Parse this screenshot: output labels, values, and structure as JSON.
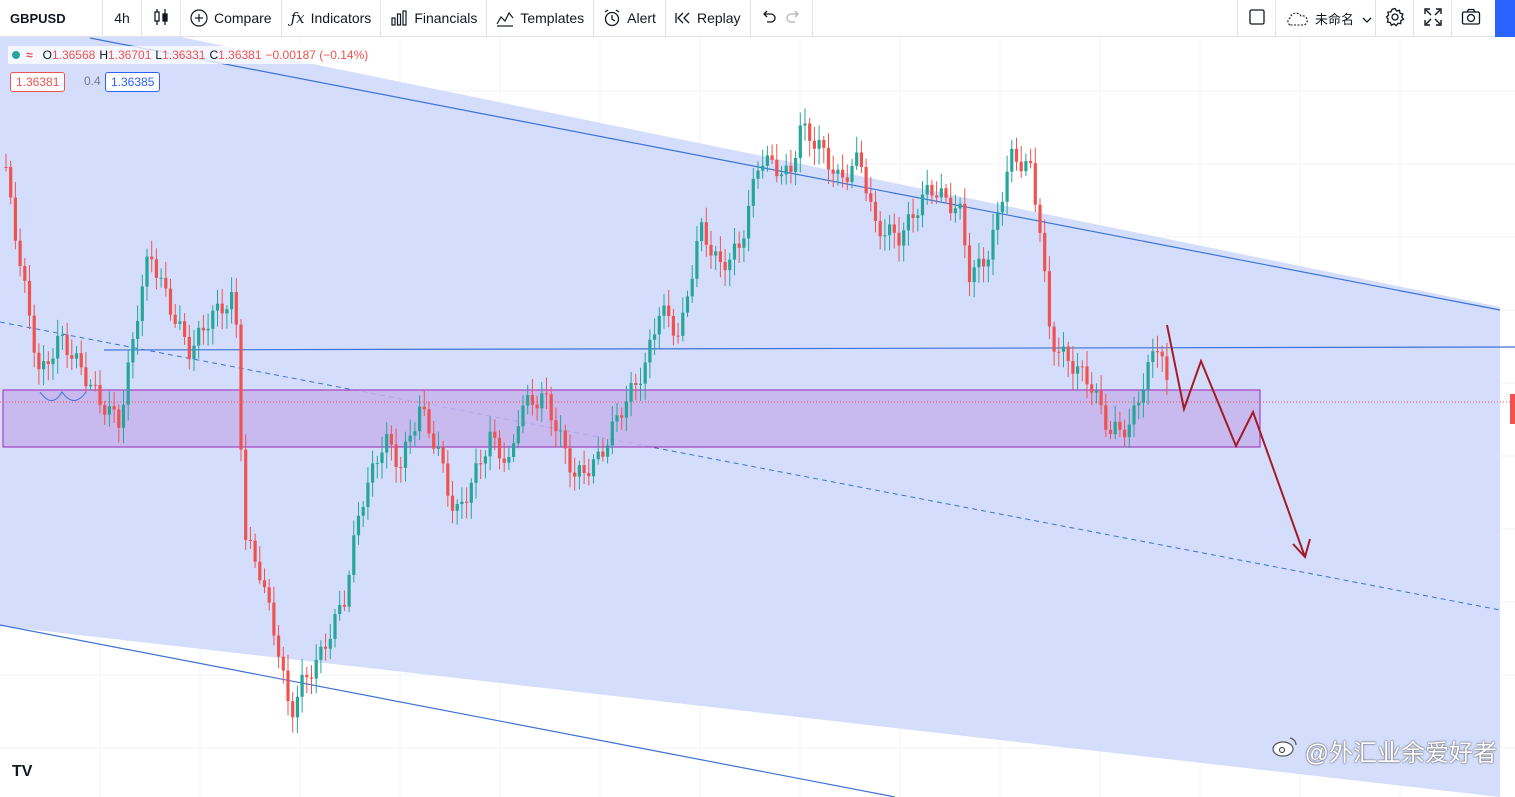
{
  "toolbar": {
    "symbol": "GBPUSD",
    "interval": "4h",
    "compare": "Compare",
    "indicators": "Indicators",
    "financials": "Financials",
    "templates": "Templates",
    "alert": "Alert",
    "replay": "Replay",
    "layout_name": "未命名"
  },
  "legend": {
    "open_label": "O",
    "open": "1.36568",
    "high_label": "H",
    "high": "1.36701",
    "low_label": "L",
    "low": "1.36331",
    "close_label": "C",
    "close": "1.36381",
    "change": "−0.00187 (−0.14%)"
  },
  "quote": {
    "bid": "1.36381",
    "spread": "0.4",
    "ask": "1.36385"
  },
  "watermark": "@外汇业余爱好者",
  "logo": "TV",
  "colors": {
    "up": "#26a69a",
    "down": "#ef5350",
    "channel_fill": "#cdd8fb",
    "channel_line": "#3d72d6",
    "zone_fill": "#c6b3ec",
    "zone_border": "#9c27b0",
    "arrow": "#a31b24",
    "accent": "#2962ff"
  },
  "icons": [
    "candles-icon",
    "compare-plus-icon",
    "indicators-fx-icon",
    "financials-bars-icon",
    "templates-icon",
    "alert-clock-icon",
    "replay-icon",
    "undo-icon",
    "redo-icon",
    "fullscreen-square-icon",
    "cloud-icon",
    "chevron-down-icon",
    "gear-icon",
    "expand-icon",
    "camera-icon"
  ]
}
